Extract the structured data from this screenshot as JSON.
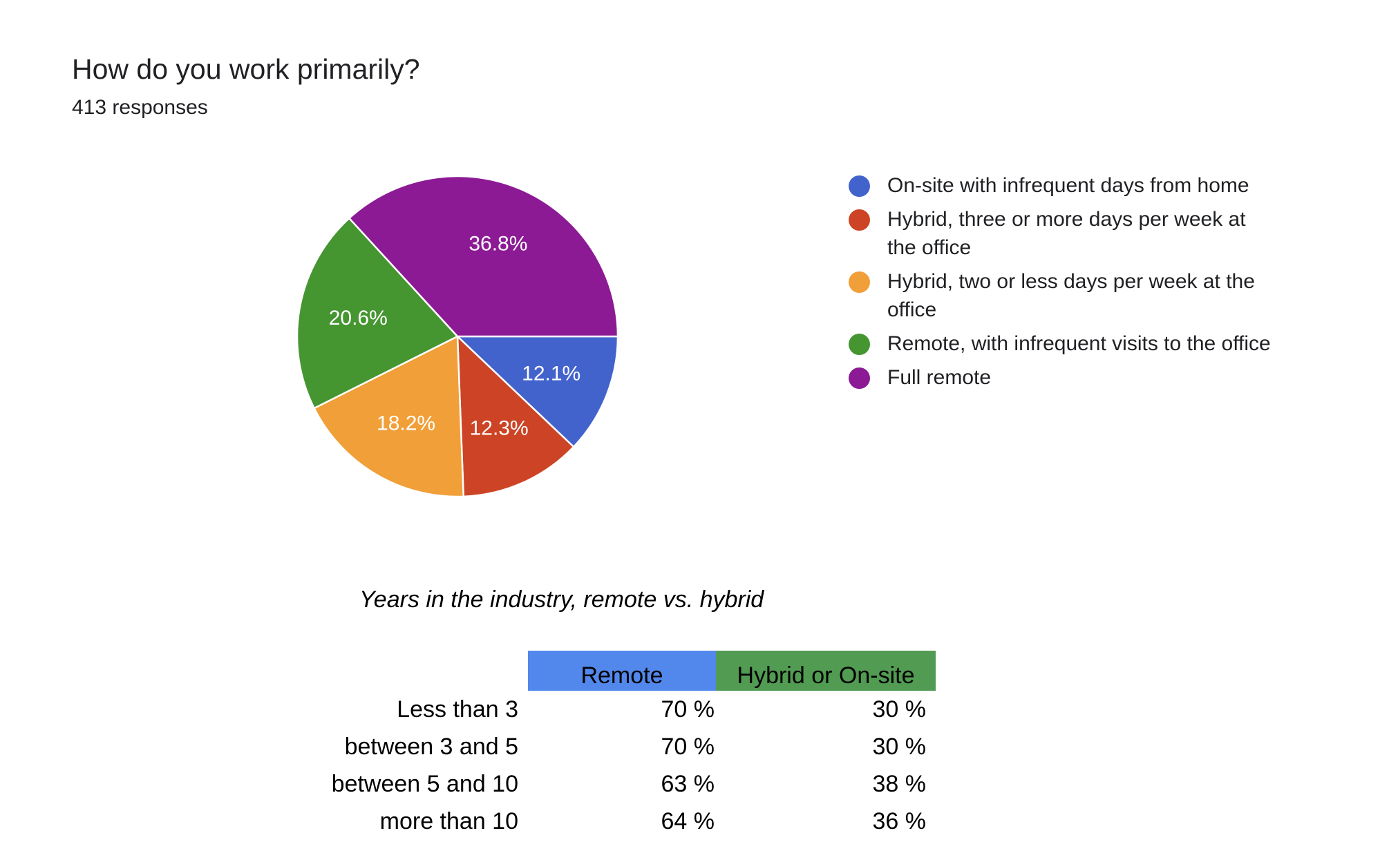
{
  "header": {
    "title": "How do you work primarily?",
    "responses": "413 responses"
  },
  "chart_data": {
    "type": "pie",
    "title": "How do you work primarily?",
    "subtitle": "413 responses",
    "legend_position": "right",
    "slices": [
      {
        "label": "On-site with infrequent days from home",
        "value": 12.1,
        "value_label": "12.1%",
        "color": "#4263cc"
      },
      {
        "label": "Hybrid, three or more days per week at the office",
        "value": 12.3,
        "value_label": "12.3%",
        "color": "#cc4425"
      },
      {
        "label": "Hybrid, two or less days per week at the office",
        "value": 18.2,
        "value_label": "18.2%",
        "color": "#f19f38"
      },
      {
        "label": "Remote, with infrequent visits to the office",
        "value": 20.6,
        "value_label": "20.6%",
        "color": "#459531"
      },
      {
        "label": "Full remote",
        "value": 36.8,
        "value_label": "36.8%",
        "color": "#8c1a94"
      }
    ]
  },
  "table": {
    "title": "Years in the industry, remote vs. hybrid",
    "columns": [
      {
        "label": "Remote",
        "color": "#5288ec"
      },
      {
        "label": "Hybrid or On-site",
        "color": "#519b52"
      }
    ],
    "rows": [
      {
        "label": "Less than 3",
        "remote": "70 %",
        "hybrid": "30 %"
      },
      {
        "label": "between 3 and 5",
        "remote": "70 %",
        "hybrid": "30 %"
      },
      {
        "label": "between 5 and 10",
        "remote": "63 %",
        "hybrid": "38 %"
      },
      {
        "label": "more than 10",
        "remote": "64 %",
        "hybrid": "36 %"
      }
    ]
  }
}
